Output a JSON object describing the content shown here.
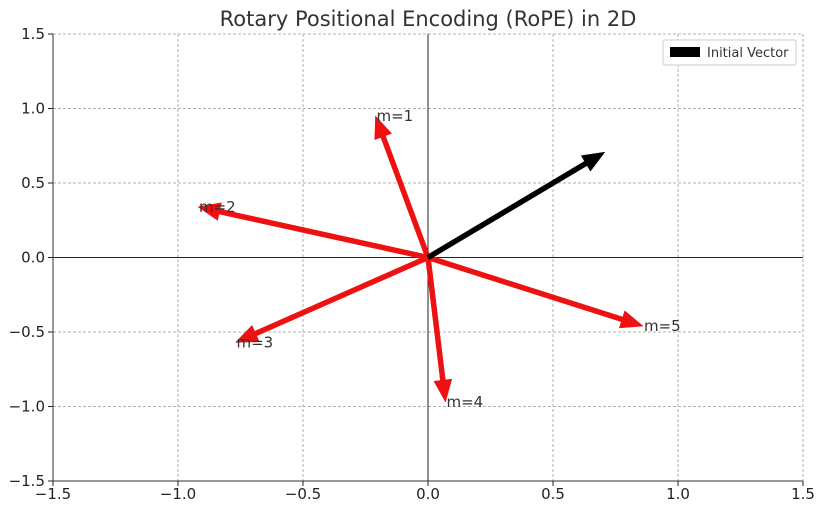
{
  "chart_data": {
    "type": "quiver",
    "title": "Rotary Positional Encoding (RoPE) in 2D",
    "xlabel": "",
    "ylabel": "",
    "xlim": [
      -1.5,
      1.5
    ],
    "ylim": [
      -1.5,
      1.5
    ],
    "xticks": [
      -1.5,
      -1.0,
      -0.5,
      0.0,
      0.5,
      1.0,
      1.5
    ],
    "yticks": [
      -1.5,
      -1.0,
      -0.5,
      0.0,
      0.5,
      1.0,
      1.5
    ],
    "xtick_labels": [
      "−1.5",
      "−1.0",
      "−0.5",
      "0.0",
      "0.5",
      "1.0",
      "1.5"
    ],
    "ytick_labels": [
      "−1.5",
      "−1.0",
      "−0.5",
      "0.0",
      "0.5",
      "1.0",
      "1.5"
    ],
    "grid": true,
    "legend": {
      "placement": "top-right",
      "entries": [
        "Initial Vector"
      ]
    },
    "colors": {
      "initial": "#000000",
      "rotated": "#ee1111"
    },
    "initial_vector": {
      "name": "Initial Vector",
      "x": 0.707,
      "y": 0.707
    },
    "rotated_vectors": [
      {
        "label": "m=1",
        "x": -0.21,
        "y": 0.95
      },
      {
        "label": "m=2",
        "x": -0.92,
        "y": 0.34
      },
      {
        "label": "m=3",
        "x": -0.77,
        "y": -0.57
      },
      {
        "label": "m=4",
        "x": 0.07,
        "y": -0.97
      },
      {
        "label": "m=5",
        "x": 0.86,
        "y": -0.46
      }
    ]
  }
}
